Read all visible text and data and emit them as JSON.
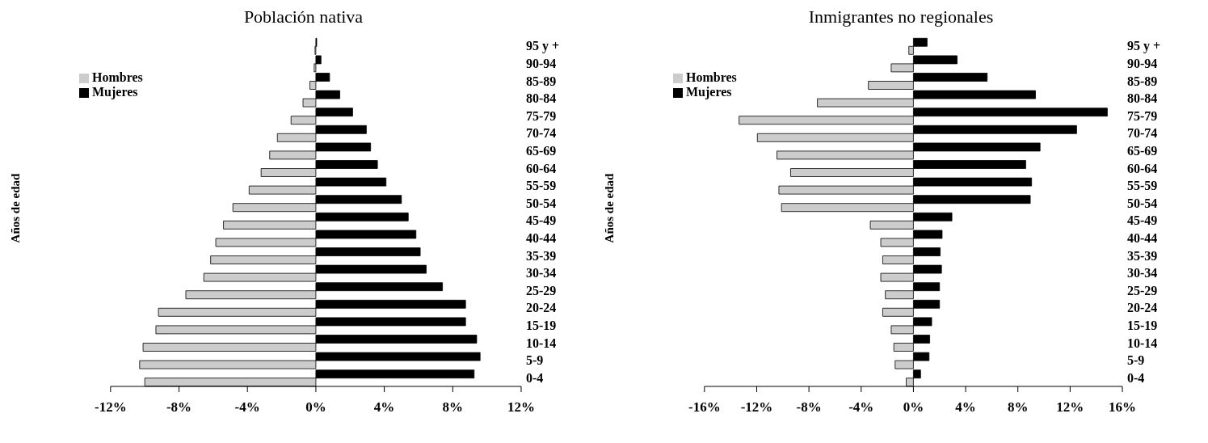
{
  "chart_data": [
    {
      "type": "bar",
      "orientation": "horizontal",
      "title": "Población nativa",
      "ylabel": "Años de edad",
      "legend": "top left",
      "grid": false,
      "categories": [
        "95 y +",
        "90-94",
        "85-89",
        "80-84",
        "75-79",
        "70-74",
        "65-69",
        "60-64",
        "55-59",
        "50-54",
        "45-49",
        "40-44",
        "35-39",
        "30-34",
        "25-29",
        "20-24",
        "15-19",
        "10-14",
        "5-9",
        "0-4"
      ],
      "series": [
        {
          "name": "Mujeres",
          "color": "#000000",
          "values": [
            0.05,
            0.3,
            0.8,
            1.4,
            2.15,
            2.95,
            3.2,
            3.6,
            4.1,
            5.0,
            5.4,
            5.85,
            6.1,
            6.45,
            7.4,
            8.75,
            8.75,
            9.4,
            9.6,
            9.25
          ]
        },
        {
          "name": "Hombres",
          "color": "#cccccc",
          "values": [
            -0.05,
            -0.1,
            -0.35,
            -0.75,
            -1.45,
            -2.25,
            -2.7,
            -3.2,
            -3.9,
            -4.85,
            -5.4,
            -5.85,
            -6.15,
            -6.55,
            -7.6,
            -9.2,
            -9.35,
            -10.1,
            -10.3,
            -10.0
          ]
        }
      ],
      "xlim": [
        -12,
        12
      ],
      "xticks": [
        {
          "value": -12,
          "label": "-12%"
        },
        {
          "value": -8,
          "label": "-8%"
        },
        {
          "value": -4,
          "label": "-4%"
        },
        {
          "value": 0,
          "label": "0%"
        },
        {
          "value": 4,
          "label": "4%"
        },
        {
          "value": 8,
          "label": "8%"
        },
        {
          "value": 12,
          "label": "12%"
        }
      ]
    },
    {
      "type": "bar",
      "orientation": "horizontal",
      "title": "Inmigrantes no regionales",
      "ylabel": "Años de edad",
      "legend": "top left",
      "grid": false,
      "categories": [
        "95 y +",
        "90-94",
        "85-89",
        "80-84",
        "75-79",
        "70-74",
        "65-69",
        "60-64",
        "55-59",
        "50-54",
        "45-49",
        "40-44",
        "35-39",
        "30-34",
        "25-29",
        "20-24",
        "15-19",
        "10-14",
        "5-9",
        "0-4"
      ],
      "series": [
        {
          "name": "Mujeres",
          "color": "#000000",
          "values": [
            1.05,
            3.35,
            5.65,
            9.35,
            14.85,
            12.5,
            9.7,
            8.6,
            9.05,
            8.95,
            2.95,
            2.2,
            2.05,
            2.15,
            2.0,
            2.0,
            1.4,
            1.25,
            1.2,
            0.55
          ]
        },
        {
          "name": "Hombres",
          "color": "#cccccc",
          "values": [
            -0.35,
            -1.7,
            -3.45,
            -7.35,
            -13.35,
            -11.95,
            -10.45,
            -9.4,
            -10.3,
            -10.1,
            -3.3,
            -2.5,
            -2.35,
            -2.5,
            -2.15,
            -2.35,
            -1.7,
            -1.5,
            -1.4,
            -0.55
          ]
        }
      ],
      "xlim": [
        -16,
        16
      ],
      "xticks": [
        {
          "value": -16,
          "label": "-16%"
        },
        {
          "value": -12,
          "label": "-12%"
        },
        {
          "value": -8,
          "label": "-8%"
        },
        {
          "value": -4,
          "label": "-4%"
        },
        {
          "value": 0,
          "label": "0%"
        },
        {
          "value": 4,
          "label": "4%"
        },
        {
          "value": 8,
          "label": "8%"
        },
        {
          "value": 12,
          "label": "12%"
        },
        {
          "value": 16,
          "label": "16%"
        }
      ]
    }
  ]
}
